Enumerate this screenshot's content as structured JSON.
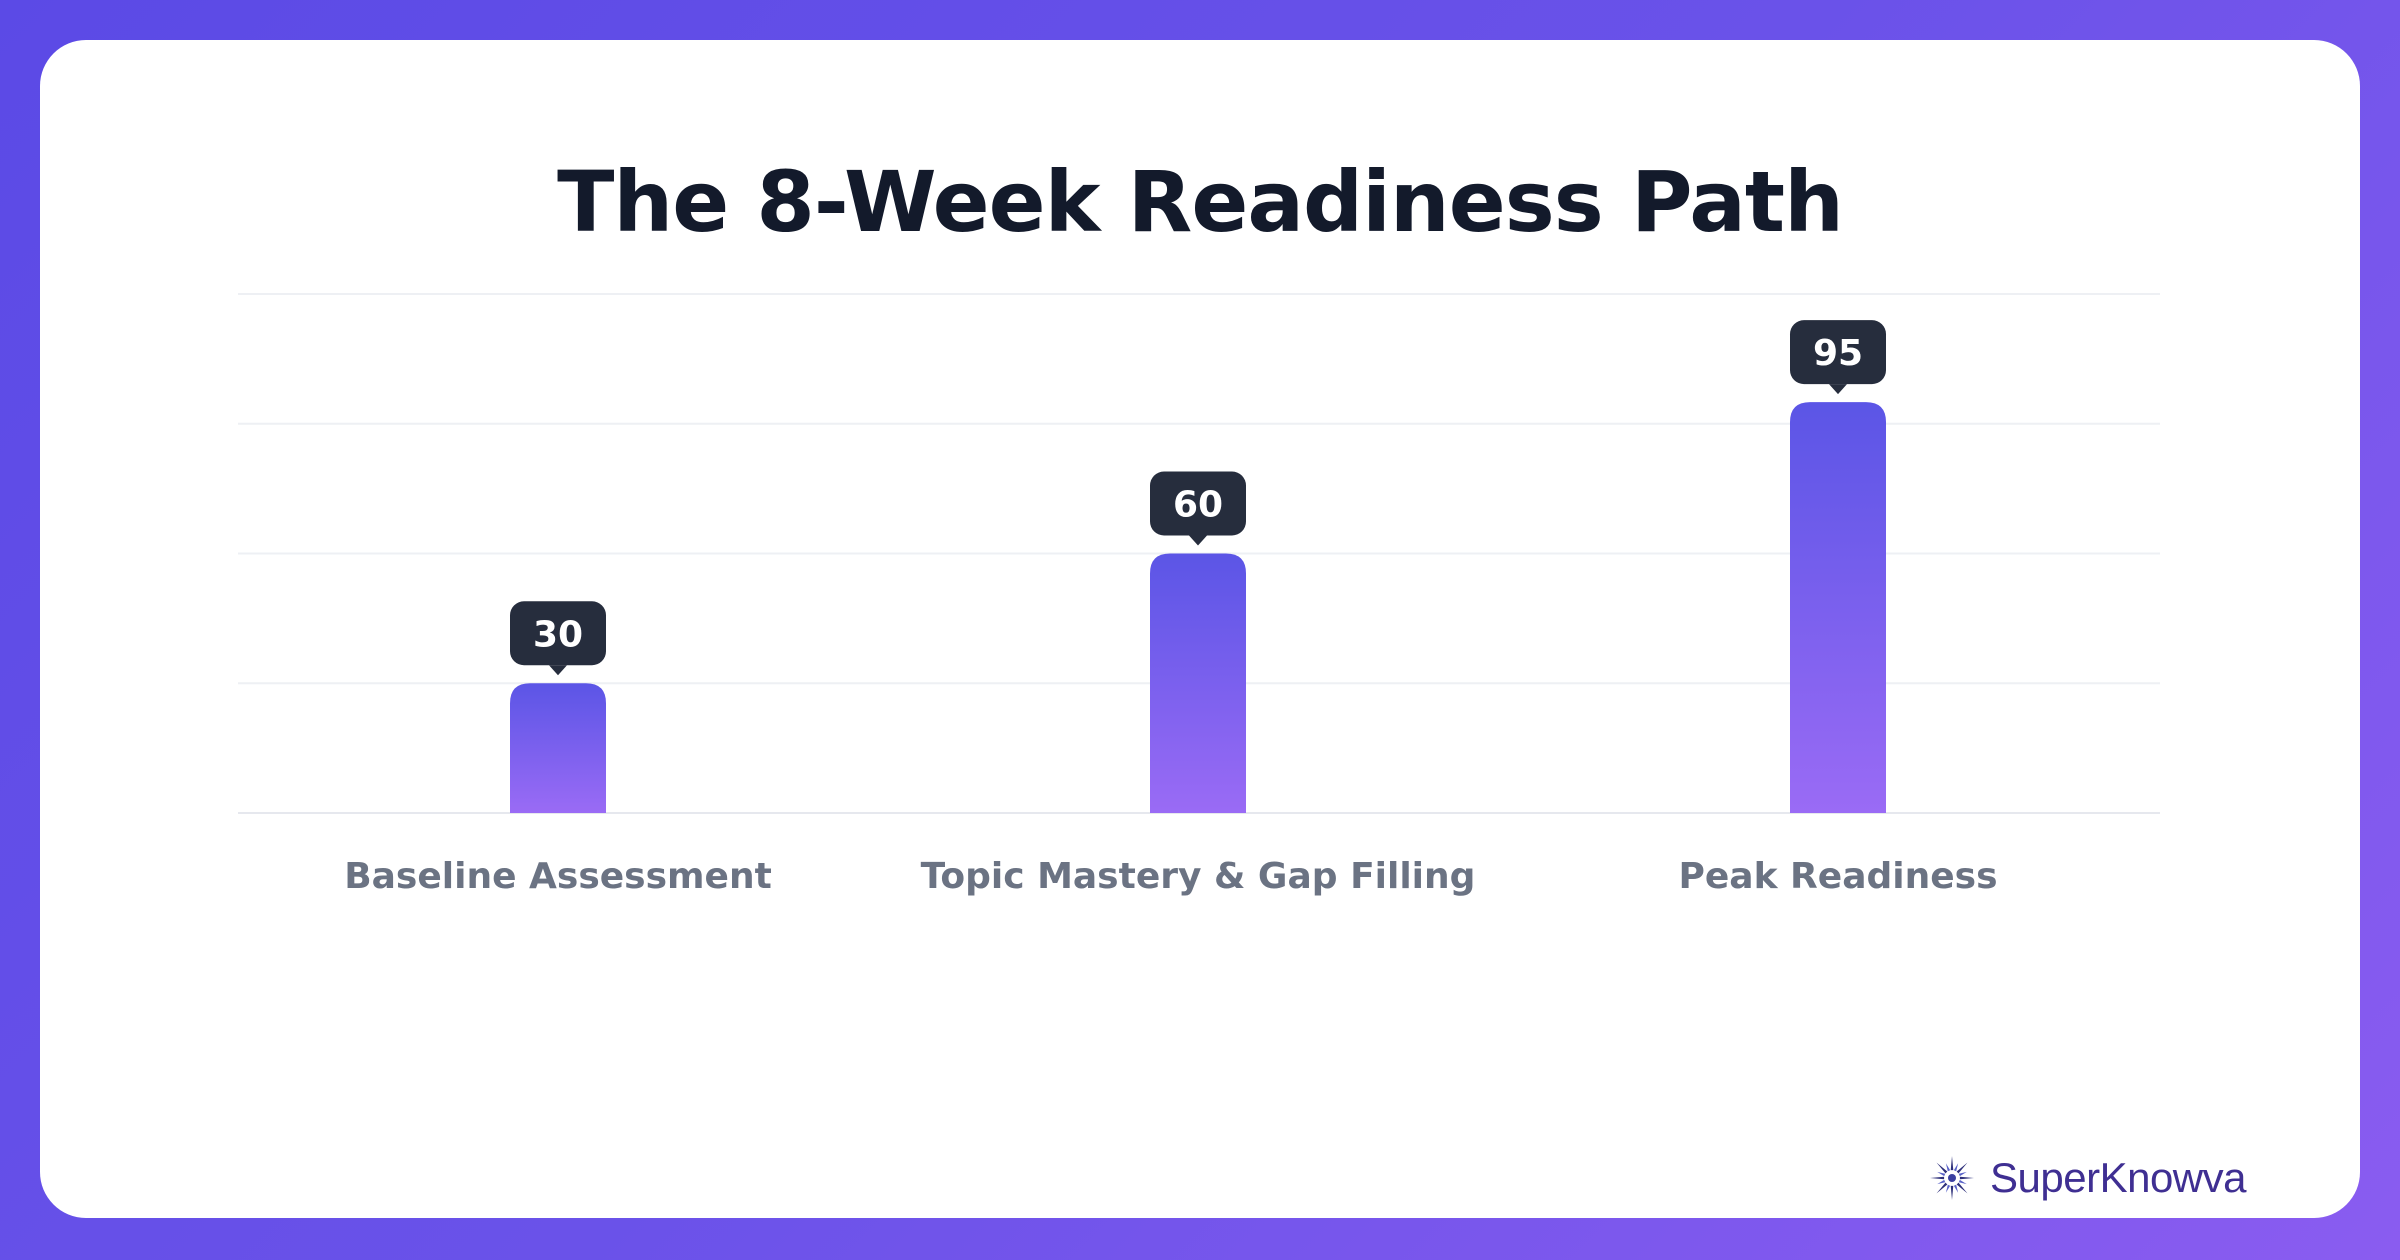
{
  "chart_data": {
    "type": "bar",
    "title": "The 8-Week Readiness Path",
    "categories": [
      "Baseline Assessment",
      "Topic Mastery & Gap Filling",
      "Peak Readiness"
    ],
    "values": [
      30,
      60,
      95
    ],
    "ylim": [
      0,
      120
    ],
    "grid": true,
    "colors": {
      "bar_top": "#5b55e6",
      "bar_bottom": "#9a6bf5",
      "label_bg": "#262d3d"
    }
  },
  "brand": {
    "name": "SuperKnowva",
    "logo_icon": "starburst-logo-icon"
  }
}
